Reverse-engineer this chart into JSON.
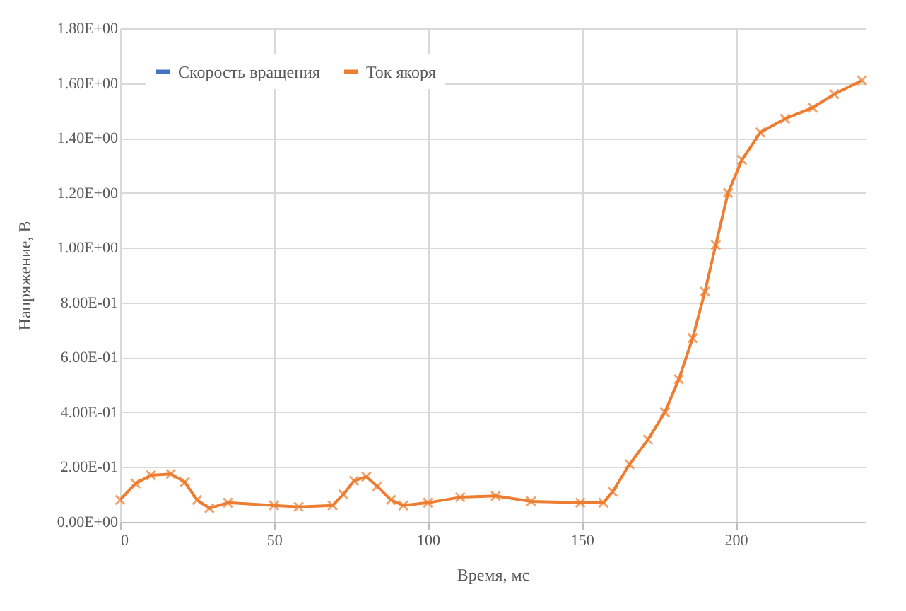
{
  "chart_data": {
    "type": "line",
    "xlabel": "Время, мс",
    "ylabel": "Напряжение, В",
    "xlim": [
      0,
      242
    ],
    "xticks": [
      0,
      50,
      100,
      150,
      200
    ],
    "ylim": [
      0,
      1.8
    ],
    "yticks": [
      {
        "value": 0,
        "label": "0.00E+00"
      },
      {
        "value": 0.2,
        "label": "2.00E-01"
      },
      {
        "value": 0.4,
        "label": "4.00E-01"
      },
      {
        "value": 0.6,
        "label": "6.00E-01"
      },
      {
        "value": 0.8,
        "label": "8.00E-01"
      },
      {
        "value": 1,
        "label": "1.00E+00"
      },
      {
        "value": 1.2,
        "label": "1.20E+00"
      },
      {
        "value": 1.4,
        "label": "1.40E+00"
      },
      {
        "value": 1.6,
        "label": "1.60E+00"
      },
      {
        "value": 1.8,
        "label": "1.80E+00"
      }
    ],
    "grid": true,
    "legend": "top left",
    "marker": "cross",
    "x": [
      0,
      5,
      10,
      16.5,
      21,
      25,
      29,
      35,
      50,
      58,
      69,
      72.5,
      76,
      80,
      83.5,
      88,
      92,
      100,
      110.5,
      122,
      133.5,
      149.5,
      157,
      160,
      165.5,
      171.5,
      177,
      181.5,
      186,
      190,
      193.5,
      197.5,
      202,
      208,
      216,
      225,
      232,
      241
    ],
    "series": [
      {
        "name": "Скорость вращения",
        "color": "#4472c4",
        "values": [
          null,
          null,
          null,
          null,
          null,
          null,
          null,
          null,
          null,
          null,
          null,
          null,
          null,
          null,
          null,
          null,
          null,
          null,
          null,
          null,
          null,
          null,
          null,
          null,
          null,
          null,
          null,
          null,
          null,
          null,
          null,
          null,
          null,
          null,
          null,
          null,
          null,
          null
        ]
      },
      {
        "name": "Ток якоря",
        "color": "#ed7d31",
        "values": [
          0.08,
          0.14,
          0.17,
          0.175,
          0.145,
          0.08,
          0.05,
          0.07,
          0.06,
          0.055,
          0.06,
          0.1,
          0.15,
          0.165,
          0.13,
          0.08,
          0.06,
          0.07,
          0.09,
          0.095,
          0.075,
          0.07,
          0.07,
          0.11,
          0.21,
          0.3,
          0.4,
          0.52,
          0.67,
          0.84,
          1.01,
          1.2,
          1.32,
          1.42,
          1.47,
          1.51,
          1.56,
          1.61
        ]
      }
    ]
  }
}
